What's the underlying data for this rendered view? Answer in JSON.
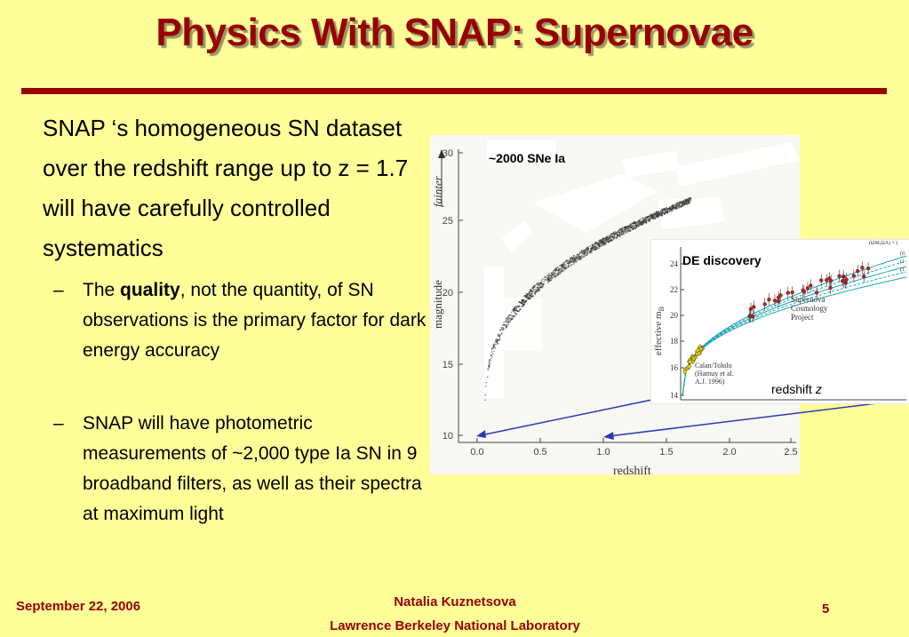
{
  "slide": {
    "title": "Physics With SNAP: Supernovae",
    "lead": "SNAP ‘s homogeneous SN dataset over the redshift range up to z = 1.7 will have carefully controlled systematics",
    "bullets": [
      {
        "dash": "–",
        "pre": "The ",
        "bold": "quality",
        "post": ", not the quantity, of SN observations is the primary factor for dark energy accuracy"
      },
      {
        "dash": "–",
        "text": "SNAP will have photometric measurements of ~2,000 type Ia SN in 9 broadband filters, as well as their spectra at maximum light"
      }
    ]
  },
  "figure": {
    "label": "~2000 SNe Ia",
    "xlabel": "redshift",
    "ylabel": "magnitude",
    "faint_label": "fainter",
    "x_ticks": [
      "0.0",
      "0.5",
      "1.0",
      "1.5",
      "2.0",
      "2.5"
    ],
    "y_ticks": [
      "30",
      "25",
      "20",
      "15",
      "10"
    ]
  },
  "inset": {
    "label": "DE discovery",
    "xlabel": "redshift ",
    "xlabel_var": "z",
    "ylabel": "effective m",
    "ylabel_sub": "B",
    "y_ticks": [
      "24",
      "22",
      "20",
      "18",
      "16",
      "14"
    ],
    "legend_title": "(ΩM,ΩΛ) = (",
    "legend_values": [
      "(0",
      "(1",
      "(1"
    ],
    "scp_lines": [
      "Supernova",
      "Cosmology",
      "Project"
    ],
    "calan_lines": [
      "Calan/Tololo",
      "(Hamuy et al.",
      "A.J. 1996)"
    ]
  },
  "footer": {
    "date": "September 22, 2006",
    "author": "Natalia Kuznetsova",
    "lab": "Lawrence Berkeley National Laboratory",
    "page": "5"
  },
  "colors": {
    "background": "#ffff99",
    "accent": "#990000",
    "arrow": "#2a3bb0"
  }
}
